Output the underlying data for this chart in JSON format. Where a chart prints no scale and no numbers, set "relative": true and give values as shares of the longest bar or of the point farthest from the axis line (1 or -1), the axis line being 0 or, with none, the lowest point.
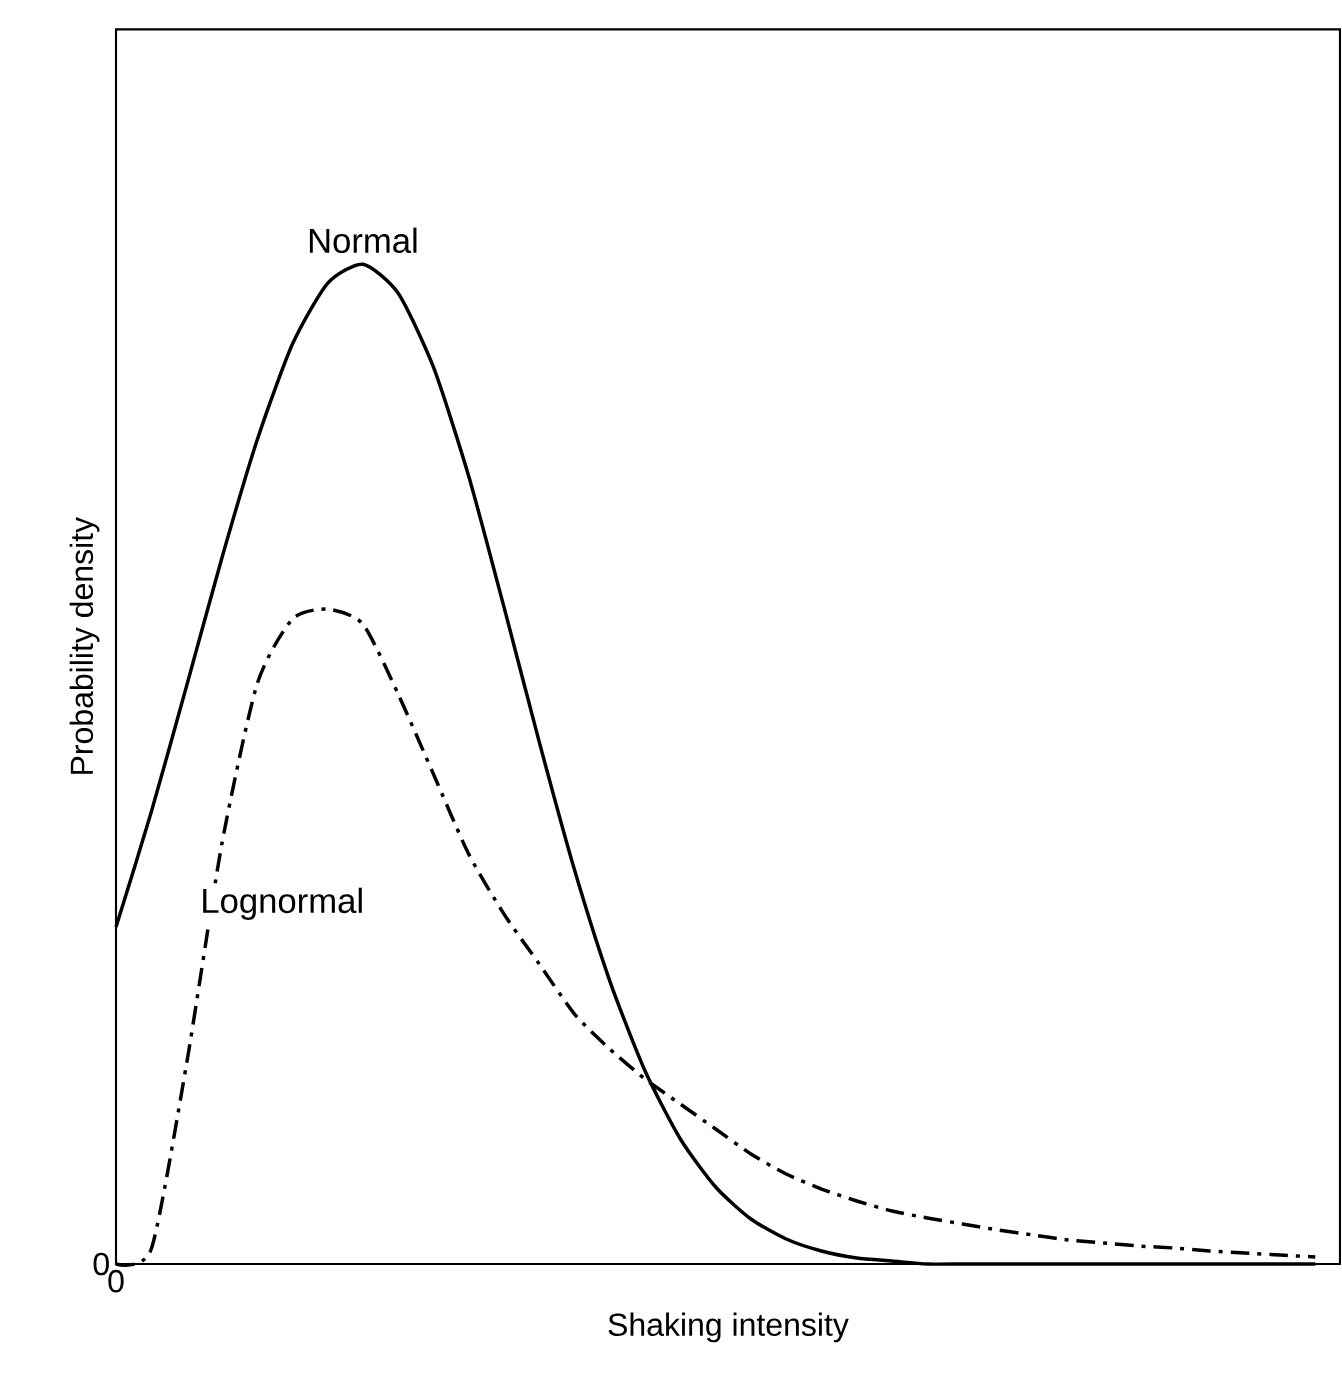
{
  "chart_data": {
    "type": "line",
    "relative": true,
    "xlabel": "Shaking intensity",
    "ylabel": "Probability density",
    "annotations": [
      "0",
      "0"
    ],
    "categories": [
      null,
      null,
      null,
      null,
      null,
      null,
      null,
      null,
      null,
      null,
      null,
      null,
      null,
      null,
      null,
      null,
      null,
      null,
      null,
      null,
      null,
      null,
      null,
      null,
      null,
      null,
      null,
      null,
      null,
      null,
      null,
      null,
      null,
      null,
      null
    ],
    "series": [
      {
        "name": "Normal",
        "color": "#000000",
        "line_style": "solid",
        "values": [
          0.337,
          0.452,
          0.578,
          0.706,
          0.824,
          0.92,
          0.981,
          1.0,
          0.971,
          0.897,
          0.788,
          0.657,
          0.522,
          0.394,
          0.283,
          0.193,
          0.125,
          0.077,
          0.045,
          0.025,
          0.013,
          0.006,
          0.003,
          0,
          0,
          0,
          0,
          0,
          0,
          0,
          0,
          0,
          0,
          0,
          0
        ]
      },
      {
        "name": "Lognormal",
        "color": "#000000",
        "line_style": "dashdot",
        "values": [
          0,
          0.015,
          0.2,
          0.42,
          0.58,
          0.645,
          0.655,
          0.64,
          0.57,
          0.49,
          0.41,
          0.35,
          0.3,
          0.25,
          0.215,
          0.185,
          0.16,
          0.135,
          0.11,
          0.09,
          0.075,
          0.063,
          0.053,
          0.046,
          0.04,
          0.034,
          0.029,
          0.024,
          0.021,
          0.018,
          0.016,
          0.013,
          0.011,
          0.009,
          0.007
        ]
      }
    ]
  }
}
